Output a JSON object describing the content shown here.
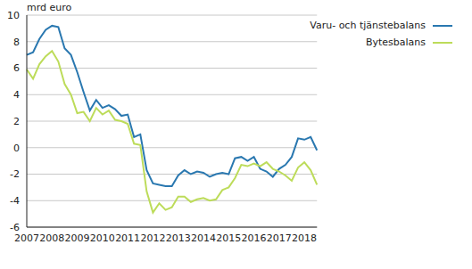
{
  "chart_data": {
    "type": "line",
    "y_label": "mrd euro",
    "categories": [
      "2007",
      null,
      null,
      null,
      "2008",
      null,
      null,
      null,
      "2009",
      null,
      null,
      null,
      "2010",
      null,
      null,
      null,
      "2011",
      null,
      null,
      null,
      "2012",
      null,
      null,
      null,
      "2013",
      null,
      null,
      null,
      "2014",
      null,
      null,
      null,
      "2015",
      null,
      null,
      null,
      "2016",
      null,
      null,
      null,
      "2017",
      null,
      null,
      null,
      "2018",
      null,
      null
    ],
    "series": [
      {
        "name": "Varu- och tjänstebalans",
        "color": "#2a78b0",
        "values": [
          7.0,
          7.2,
          8.2,
          8.9,
          9.2,
          9.1,
          7.5,
          7.0,
          5.7,
          4.2,
          2.8,
          3.6,
          3.0,
          3.2,
          2.9,
          2.4,
          2.5,
          0.8,
          1.0,
          -1.7,
          -2.7,
          -2.8,
          -2.9,
          -2.9,
          -2.1,
          -1.7,
          -2.0,
          -1.8,
          -1.9,
          -2.2,
          -2.0,
          -1.9,
          -2.0,
          -0.8,
          -0.7,
          -1.0,
          -0.7,
          -1.6,
          -1.8,
          -2.2,
          -1.6,
          -1.3,
          -0.7,
          0.7,
          0.6,
          0.8,
          -0.2
        ]
      },
      {
        "name": "Bytesbalans",
        "color": "#bddc5a",
        "values": [
          5.9,
          5.2,
          6.3,
          6.9,
          7.3,
          6.5,
          4.8,
          4.0,
          2.6,
          2.7,
          2.0,
          3.0,
          2.5,
          2.8,
          2.1,
          2.0,
          1.8,
          0.3,
          0.2,
          -3.3,
          -4.9,
          -4.2,
          -4.7,
          -4.5,
          -3.7,
          -3.7,
          -4.1,
          -3.9,
          -3.8,
          -4.0,
          -3.9,
          -3.2,
          -3.0,
          -2.3,
          -1.3,
          -1.4,
          -1.2,
          -1.4,
          -1.1,
          -1.6,
          -1.8,
          -2.1,
          -2.5,
          -1.5,
          -1.1,
          -1.7,
          -2.8
        ]
      }
    ],
    "ylim": [
      -6,
      10
    ],
    "yticks": [
      -6,
      -4,
      -2,
      0,
      2,
      4,
      6,
      8,
      10
    ],
    "grid": true,
    "legend": "upper right"
  }
}
